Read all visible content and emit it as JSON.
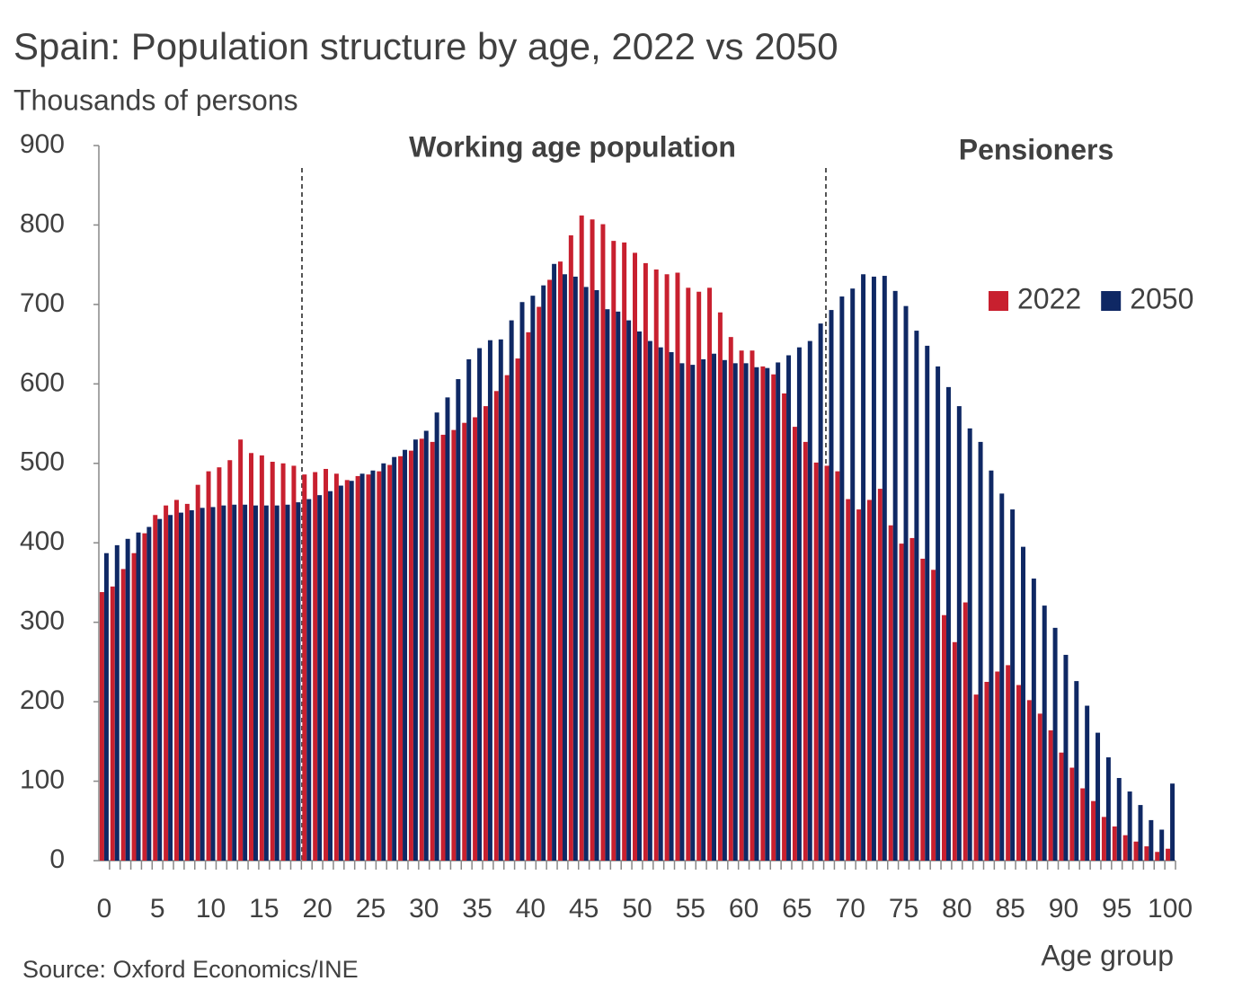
{
  "chart_data": {
    "type": "bar",
    "title": "Spain: Population structure by age, 2022 vs 2050",
    "subtitle": "Thousands of persons",
    "x_label": "Age group",
    "source": "Source: Oxford Economics/INE",
    "annotations": [
      "Working age population",
      "Pensioners"
    ],
    "categories": [
      "0",
      null,
      null,
      null,
      null,
      "5",
      null,
      null,
      null,
      null,
      "10",
      null,
      null,
      null,
      null,
      "15",
      null,
      null,
      null,
      null,
      "20",
      null,
      null,
      null,
      null,
      "25",
      null,
      null,
      null,
      null,
      "30",
      null,
      null,
      null,
      null,
      "35",
      null,
      null,
      null,
      null,
      "40",
      null,
      null,
      null,
      null,
      "45",
      null,
      null,
      null,
      null,
      "50",
      null,
      null,
      null,
      null,
      "55",
      null,
      null,
      null,
      null,
      "60",
      null,
      null,
      null,
      null,
      "65",
      null,
      null,
      null,
      null,
      "70",
      null,
      null,
      null,
      null,
      "75",
      null,
      null,
      null,
      null,
      "80",
      null,
      null,
      null,
      null,
      "85",
      null,
      null,
      null,
      null,
      "90",
      null,
      null,
      null,
      null,
      "95",
      null,
      null,
      null,
      null,
      "100"
    ],
    "series": [
      {
        "name": "2022",
        "color": "#c8202f",
        "values": [
          338,
          345,
          367,
          387,
          412,
          435,
          447,
          454,
          449,
          473,
          490,
          495,
          504,
          530,
          513,
          510,
          502,
          500,
          497,
          486,
          489,
          493,
          487,
          479,
          484,
          486,
          490,
          498,
          509,
          516,
          531,
          527,
          536,
          542,
          551,
          558,
          572,
          591,
          611,
          632,
          665,
          697,
          731,
          754,
          787,
          812,
          807,
          801,
          780,
          778,
          765,
          752,
          744,
          738,
          740,
          721,
          716,
          721,
          690,
          659,
          642,
          642,
          622,
          612,
          588,
          546,
          527,
          501,
          497,
          490,
          455,
          442,
          454,
          468,
          422,
          399,
          406,
          380,
          366,
          309,
          275,
          325,
          209,
          225,
          238,
          246,
          221,
          202,
          185,
          164,
          136,
          117,
          91,
          75,
          55,
          43,
          32,
          24,
          18,
          11,
          15
        ]
      },
      {
        "name": "2050",
        "color": "#0f2864",
        "values": [
          387,
          397,
          405,
          413,
          420,
          430,
          435,
          438,
          441,
          444,
          445,
          447,
          448,
          448,
          447,
          447,
          447,
          448,
          451,
          455,
          460,
          465,
          472,
          478,
          487,
          491,
          500,
          508,
          517,
          530,
          541,
          564,
          583,
          606,
          631,
          645,
          655,
          656,
          680,
          703,
          711,
          724,
          751,
          738,
          735,
          722,
          718,
          694,
          691,
          680,
          666,
          654,
          646,
          640,
          626,
          624,
          631,
          638,
          630,
          626,
          626,
          621,
          620,
          627,
          636,
          646,
          654,
          676,
          693,
          710,
          720,
          738,
          735,
          736,
          717,
          698,
          667,
          648,
          622,
          596,
          572,
          544,
          527,
          491,
          462,
          442,
          395,
          355,
          321,
          293,
          259,
          226,
          195,
          161,
          130,
          104,
          87,
          70,
          51,
          39,
          97
        ]
      }
    ],
    "ylim": [
      0,
      900
    ],
    "yticks": [
      0,
      100,
      200,
      300,
      400,
      500,
      600,
      700,
      800,
      900
    ],
    "legend": "right"
  }
}
